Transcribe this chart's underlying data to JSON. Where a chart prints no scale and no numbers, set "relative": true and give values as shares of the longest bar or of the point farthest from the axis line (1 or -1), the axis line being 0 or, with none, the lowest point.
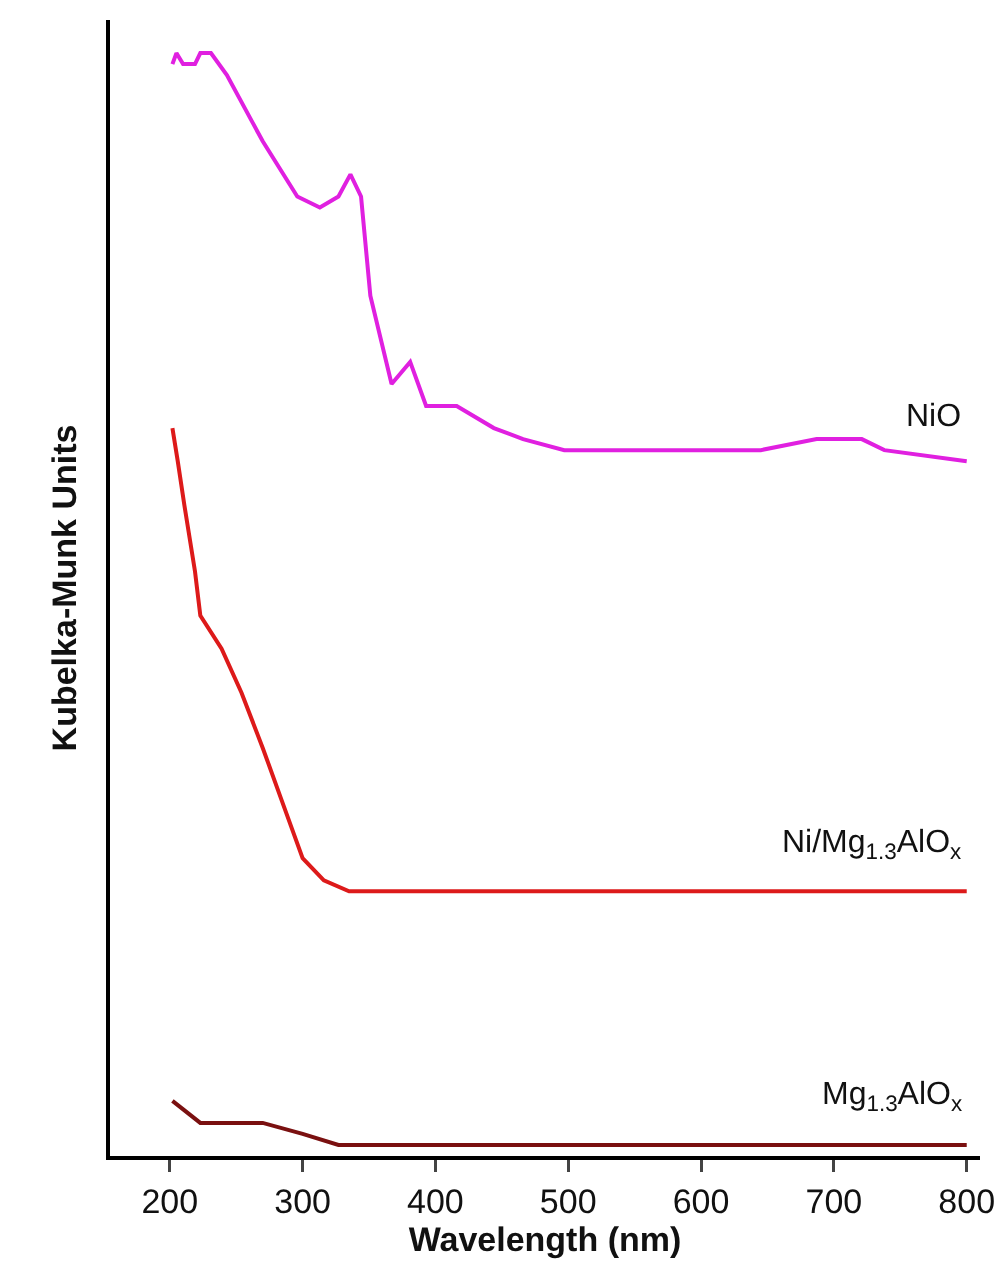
{
  "chart_data": {
    "type": "line",
    "relative": true,
    "xlabel": "Wavelength (nm)",
    "ylabel": "Kubelka-Munk Units",
    "xlim": [
      155,
      810
    ],
    "xticks": [
      200,
      300,
      400,
      500,
      600,
      700,
      800
    ],
    "grid": false,
    "legend": false,
    "marker": "none",
    "line_style": "solid",
    "series": [
      {
        "name": "NiO",
        "color": "#e020e0",
        "x": [
          202,
          205,
          210,
          219,
          223,
          231,
          243,
          270,
          296,
          313,
          327,
          336,
          344,
          351,
          367,
          381,
          393,
          416,
          444,
          466,
          497,
          610,
          645,
          687,
          721,
          738,
          800
        ],
        "values": [
          0.99,
          1.0,
          0.99,
          0.99,
          1.0,
          1.0,
          0.98,
          0.92,
          0.87,
          0.86,
          0.87,
          0.89,
          0.87,
          0.78,
          0.7,
          0.72,
          0.68,
          0.68,
          0.66,
          0.65,
          0.64,
          0.64,
          0.64,
          0.65,
          0.65,
          0.64,
          0.63
        ]
      },
      {
        "name": "Ni/Mg$_{1.3}$AlO$_{x}$",
        "color": "#dd1a1a",
        "x": [
          202,
          206,
          211,
          219,
          223,
          239,
          254,
          270,
          285,
          300,
          316,
          335,
          400,
          500,
          650,
          800
        ],
        "values": [
          0.66,
          0.63,
          0.59,
          0.53,
          0.49,
          0.46,
          0.42,
          0.37,
          0.32,
          0.27,
          0.25,
          0.24,
          0.24,
          0.24,
          0.24,
          0.24
        ]
      },
      {
        "name": "Mg$_{1.3}$AlO$_{x}$",
        "color": "#7a1010",
        "x": [
          202,
          223,
          270,
          300,
          327,
          351,
          500,
          650,
          800
        ],
        "values": [
          0.05,
          0.03,
          0.03,
          0.02,
          0.01,
          0.01,
          0.01,
          0.01,
          0.01
        ]
      }
    ]
  }
}
